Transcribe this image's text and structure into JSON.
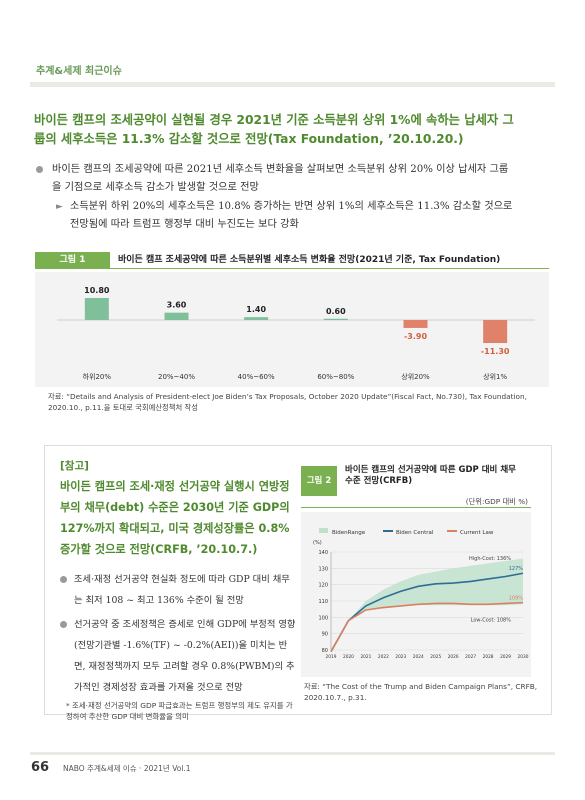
{
  "section_label": "추계&세제 최근이슈",
  "headline": "바이든 캠프의 조세공약이 실현될 경우 2021년 기준 소득분위 상위 1%에 속하는 납세자 그룹의 세후소득은 11.3% 감소할 것으로 전망(Tax Foundation, ’20.10.20.)",
  "bullet1": "바이든 캠프의 조세공약에 따른 2021년 세후소득 변화율을 살펴보면 소득분위 상위 20% 이상 납세자 그룹을 기점으로 세후소득 감소가 발생할 것으로 전망",
  "sub1": "소득분위 하위 20%의 세후소득은 10.8% 증가하는 반면 상위 1%의 세후소득은 11.3% 감소할 것으로 전망됨에 따라 트럼프 행정부 대비 누진도는 보다 강화",
  "figure1": {
    "label": "그림 1",
    "title": "바이든 캠프 조세공약에 따른 소득분위별 세후소득 변화율 전망(2021년 기준, Tax Foundation)",
    "source": "자료: “Details and Analysis of President-elect Joe Biden’s Tax Proposals, October 2020 Update”(Fiscal Fact, No.730), Tax Foundation, 2020.10., p.11.을 토대로 국회예산정책처 작성"
  },
  "reference": {
    "header": "[참고]",
    "title": "바이든 캠프의 조세·재정 선거공약 실행시 연방정부의 채무(debt) 수준은 2030년 기준 GDP의 127%까지 확대되고, 미국 경제성장률은 0.8% 증가할 것으로 전망(CRFB, ’20.10.7.)",
    "bullet1": "조세·재정 선거공약 현실화 정도에 따라 GDP 대비 채무는 최저 108 ~ 최고 136% 수준이 될 전망",
    "bullet2": "선거공약 중 조세정책은 증세로 인해 GDP에 부정적 영향(전망기관별 -1.6%(TF) ~ -0.2%(AEI))을 미치는 반면, 재정정책까지 모두 고려할 경우 0.8%(PWBM)의 추가적인 경제성장 효과를 가져올 것으로 전망",
    "note": "* 조세·재정 선거공약의 GDP 파급효과는 트럼프 행정부의 제도 유지를 가정하여 추산한 GDP 대비 변화율을 의미"
  },
  "figure2": {
    "label": "그림 2",
    "title": "바이든 캠프의 선거공약에 따른 GDP 대비 채무 수준 전망(CRFB)",
    "unit": "(단위:GDP 대비 %)",
    "source": "자료: “The Cost of the Trump and Biden Campaign Plans”, CRFB, 2020.10.7., p.31."
  },
  "footer": {
    "page_number": "66",
    "text": "NABO 추계&세제 이슈 · 2021년 Vol.1"
  },
  "colors": {
    "accent": "#4f8a2e",
    "positive_bar": "#7fbf9a",
    "negative_bar": "#e0826a"
  },
  "chart_data": [
    {
      "type": "bar",
      "categories": [
        "하위20%",
        "20%~40%",
        "40%~60%",
        "60%~80%",
        "상위20%",
        "상위1%"
      ],
      "values": [
        10.8,
        3.6,
        1.4,
        0.6,
        -3.9,
        -11.3
      ],
      "value_labels": [
        "10.80",
        "3.60",
        "1.40",
        "0.60",
        "-3.90",
        "-11.30"
      ],
      "title": "",
      "xlabel": "",
      "ylabel": "",
      "ylim": [
        -12,
        12
      ],
      "grid": false
    },
    {
      "type": "line",
      "x": [
        2019,
        2020,
        2021,
        2022,
        2023,
        2024,
        2025,
        2026,
        2027,
        2028,
        2029,
        2030
      ],
      "x_tick_labels": [
        "2019",
        "2020",
        "2021",
        "2022",
        "2023",
        "2024",
        "2025",
        "2026",
        "2027",
        "2028",
        "2029",
        "2030"
      ],
      "ylabel": "(%)",
      "ylim": [
        80,
        140
      ],
      "y_ticks": [
        80,
        90,
        100,
        110,
        120,
        130,
        140
      ],
      "legend": [
        "BidenRange",
        "Biden Central",
        "Current Law"
      ],
      "legend_position": "top",
      "series": [
        {
          "name": "Biden Central",
          "values": [
            79,
            98,
            107,
            112,
            116,
            119,
            120.5,
            121,
            122,
            123.5,
            125,
            127
          ]
        },
        {
          "name": "Current Law",
          "values": [
            79,
            98,
            104.5,
            106,
            107,
            108,
            108.5,
            108.5,
            108,
            108,
            108.5,
            109
          ]
        }
      ],
      "range": {
        "name": "BidenRange",
        "low": [
          79,
          98,
          105,
          106.5,
          107,
          107.5,
          107.5,
          107.5,
          107.5,
          107.5,
          107.5,
          108
        ],
        "high": [
          79,
          98,
          110,
          117,
          122,
          126,
          128,
          130,
          131.5,
          133,
          134.5,
          136
        ]
      },
      "annotations": [
        "High-Cost: 136%",
        "127%",
        "109%",
        "Low-Cost: 108%"
      ],
      "grid": true
    }
  ]
}
